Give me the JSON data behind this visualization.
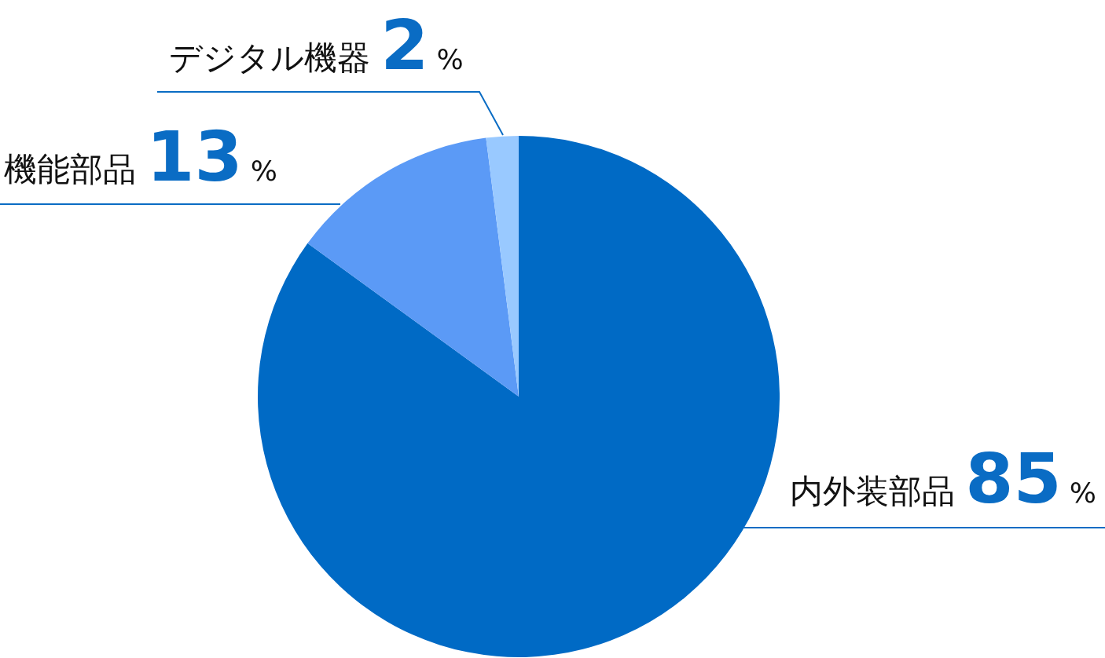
{
  "chart_data": {
    "type": "pie",
    "categories": [
      "内外装部品",
      "機能部品",
      "デジタル機器"
    ],
    "values": [
      85,
      13,
      2
    ],
    "colors": [
      "#006ac5",
      "#5b9af6",
      "#99c9ff"
    ],
    "value_labels": [
      "85%",
      "13%",
      "2%"
    ]
  }
}
